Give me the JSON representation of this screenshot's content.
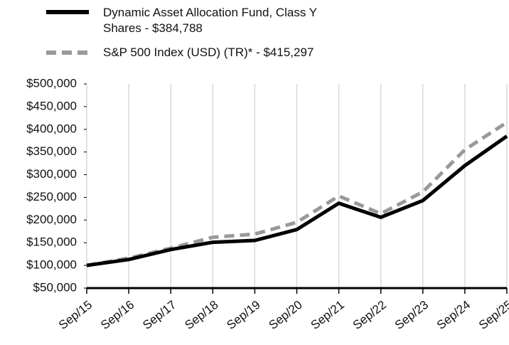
{
  "chart_data": {
    "type": "line",
    "categories": [
      "Sep/15",
      "Sep/16",
      "Sep/17",
      "Sep/18",
      "Sep/19",
      "Sep/20",
      "Sep/21",
      "Sep/22",
      "Sep/23",
      "Sep/24",
      "Sep/25"
    ],
    "series": [
      {
        "name": "Dynamic Asset Allocation Fund, Class Y Shares - $384,788",
        "color": "#000000",
        "dash": false,
        "values": [
          100000,
          113000,
          135000,
          151000,
          155000,
          179000,
          237000,
          206000,
          243000,
          320000,
          384788
        ]
      },
      {
        "name": "S&P 500 Index (USD) (TR)* - $415,297",
        "color": "#999999",
        "dash": true,
        "values": [
          100000,
          116000,
          138000,
          162000,
          169000,
          195000,
          253000,
          214000,
          262000,
          355000,
          415297
        ]
      }
    ],
    "ylim": [
      50000,
      500000
    ],
    "yticks": [
      {
        "value": 50000,
        "label": "$50,000"
      },
      {
        "value": 100000,
        "label": "$100,000"
      },
      {
        "value": 150000,
        "label": "$150,000"
      },
      {
        "value": 200000,
        "label": "$200,000"
      },
      {
        "value": 250000,
        "label": "$250,000"
      },
      {
        "value": 300000,
        "label": "$300,000"
      },
      {
        "value": 350000,
        "label": "$350,000"
      },
      {
        "value": 400000,
        "label": "$400,000"
      },
      {
        "value": 450000,
        "label": "$450,000"
      },
      {
        "value": 500000,
        "label": "$500,000"
      }
    ],
    "grid": true
  }
}
